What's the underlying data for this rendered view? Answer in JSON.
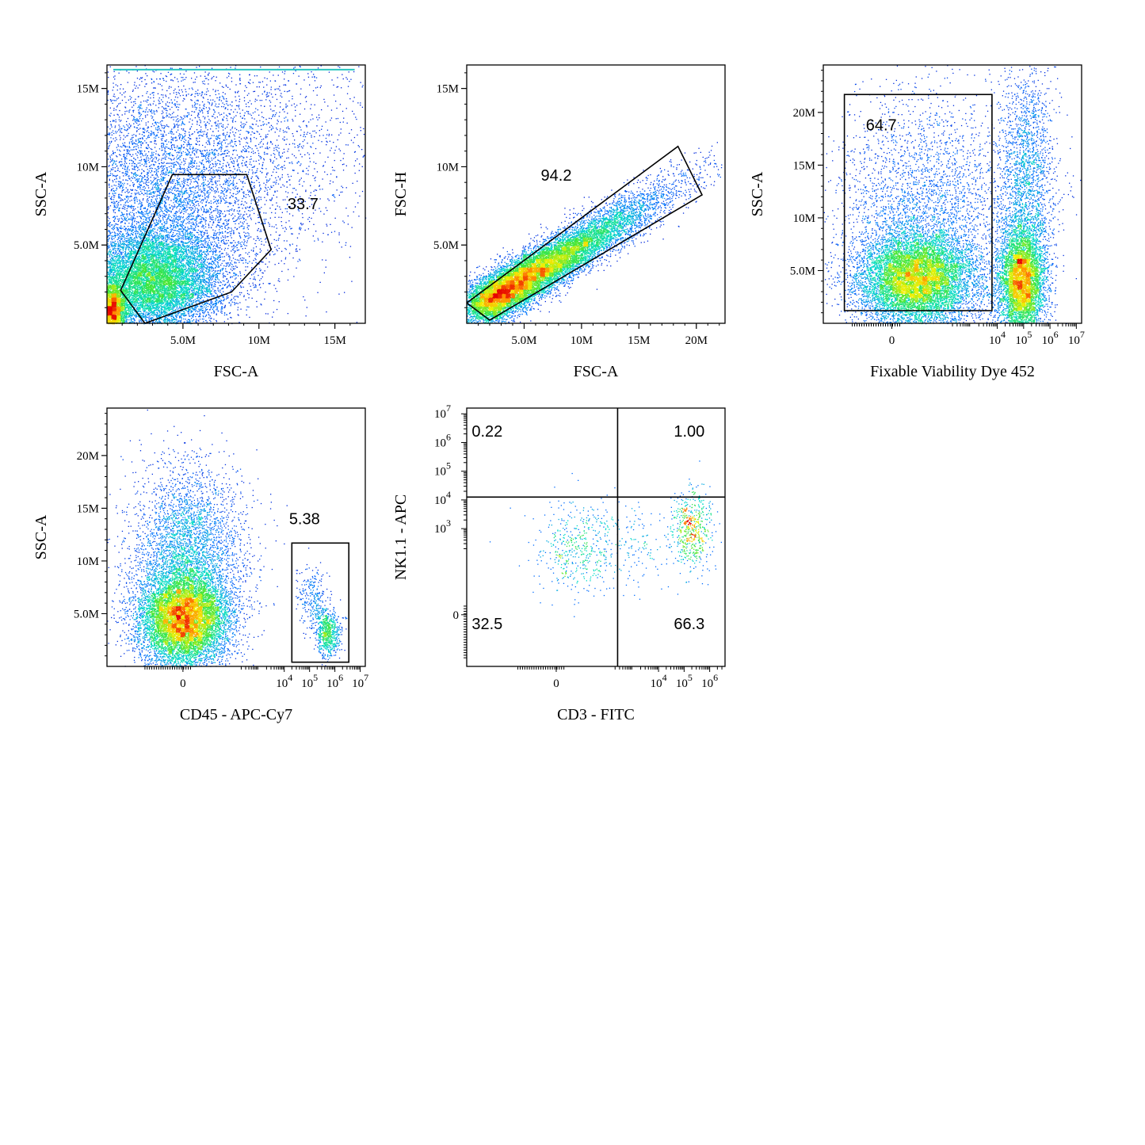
{
  "chart_data": [
    {
      "id": "p1",
      "type": "scatter",
      "xlabel": "FSC-A",
      "ylabel": "SSC-A",
      "xscale": "linear",
      "yscale": "linear",
      "xlim": [
        0,
        17000000
      ],
      "ylim": [
        0,
        16500000
      ],
      "xticks": [
        {
          "v": 5000000,
          "label": "5.0M"
        },
        {
          "v": 10000000,
          "label": "10M"
        },
        {
          "v": 15000000,
          "label": "15M"
        }
      ],
      "yticks": [
        {
          "v": 5000000,
          "label": "5.0M"
        },
        {
          "v": 10000000,
          "label": "10M"
        },
        {
          "v": 15000000,
          "label": "15M"
        }
      ],
      "gate": {
        "shape": "polygon",
        "points": [
          [
            4300000,
            9500000
          ],
          [
            9200000,
            9500000
          ],
          [
            10800000,
            4700000
          ],
          [
            8200000,
            2000000
          ],
          [
            2500000,
            0
          ],
          [
            900000,
            2100000
          ]
        ],
        "label": "33.7",
        "label_at": [
          12900000,
          7300000
        ]
      },
      "clusters": [
        {
          "cx": 3000000,
          "cy": 2700000,
          "sx": 2200000,
          "sy": 1600000,
          "n": 9000
        },
        {
          "cx": 300000,
          "cy": 800000,
          "sx": 500000,
          "sy": 900000,
          "n": 3000
        },
        {
          "cx": 3500000,
          "cy": 7000000,
          "sx": 3500000,
          "sy": 4200000,
          "n": 6000
        },
        {
          "cx": 8000000,
          "cy": 11000000,
          "sx": 5000000,
          "sy": 4000000,
          "n": 2500
        }
      ],
      "ceiling": 16200000
    },
    {
      "id": "p2",
      "type": "scatter",
      "xlabel": "FSC-A",
      "ylabel": "FSC-H",
      "xscale": "linear",
      "yscale": "linear",
      "xlim": [
        0,
        22500000
      ],
      "ylim": [
        0,
        16500000
      ],
      "xticks": [
        {
          "v": 5000000,
          "label": "5.0M"
        },
        {
          "v": 10000000,
          "label": "10M"
        },
        {
          "v": 15000000,
          "label": "15M"
        },
        {
          "v": 20000000,
          "label": "20M"
        }
      ],
      "yticks": [
        {
          "v": 5000000,
          "label": "5.0M"
        },
        {
          "v": 10000000,
          "label": "10M"
        },
        {
          "v": 15000000,
          "label": "15M"
        }
      ],
      "gate": {
        "shape": "polygon",
        "points": [
          [
            0,
            1300000
          ],
          [
            18400000,
            11300000
          ],
          [
            20500000,
            8200000
          ],
          [
            2000000,
            200000
          ]
        ],
        "label": "94.2",
        "label_at": [
          7800000,
          9100000
        ]
      },
      "diagonal": {
        "x0": 1000000,
        "y0": 1000000,
        "x1": 22000000,
        "y1": 10500000,
        "spread": 700000,
        "n": 14000
      }
    },
    {
      "id": "p3",
      "type": "scatter",
      "xlabel": "Fixable Viability Dye 452",
      "ylabel": "SSC-A",
      "xscale": "biex",
      "yscale": "linear",
      "xlim": [
        -2.6,
        7.2
      ],
      "ylim": [
        0,
        24500000
      ],
      "xticks": [
        {
          "v": 0,
          "label": "0"
        },
        {
          "v": 4,
          "label": "10",
          "exp": "4"
        },
        {
          "v": 5,
          "label": "10",
          "exp": "5"
        },
        {
          "v": 6,
          "label": "10",
          "exp": "6"
        },
        {
          "v": 7,
          "label": "10",
          "exp": "7"
        }
      ],
      "yticks": [
        {
          "v": 5000000,
          "label": "5.0M"
        },
        {
          "v": 10000000,
          "label": "10M"
        },
        {
          "v": 15000000,
          "label": "15M"
        },
        {
          "v": 20000000,
          "label": "20M"
        }
      ],
      "gate": {
        "shape": "rect",
        "x0": -1.8,
        "x1": 3.8,
        "y0": 1200000,
        "y1": 21700000,
        "label": "64.7",
        "label_at": [
          -0.4,
          18300000
        ]
      },
      "clusters": [
        {
          "cx": 0.9,
          "cy": 4200000,
          "sx": 1.1,
          "sy": 2300000,
          "n": 9000
        },
        {
          "cx": 4.9,
          "cy": 4000000,
          "sx": 0.45,
          "sy": 2600000,
          "n": 5500
        },
        {
          "cx": 1.3,
          "cy": 11000000,
          "sx": 1.7,
          "sy": 5500000,
          "n": 3000
        },
        {
          "cx": 5.1,
          "cy": 14000000,
          "sx": 0.55,
          "sy": 5000000,
          "n": 2000
        }
      ]
    },
    {
      "id": "p4",
      "type": "scatter",
      "xlabel": "CD45 - APC-Cy7",
      "ylabel": "SSC-A",
      "xscale": "biex",
      "yscale": "linear",
      "xlim": [
        -3.0,
        7.2
      ],
      "ylim": [
        0,
        24500000
      ],
      "xticks": [
        {
          "v": 0,
          "label": "0"
        },
        {
          "v": 4,
          "label": "10",
          "exp": "4"
        },
        {
          "v": 5,
          "label": "10",
          "exp": "5"
        },
        {
          "v": 6,
          "label": "10",
          "exp": "6"
        },
        {
          "v": 7,
          "label": "10",
          "exp": "7"
        }
      ],
      "yticks": [
        {
          "v": 5000000,
          "label": "5.0M"
        },
        {
          "v": 10000000,
          "label": "10M"
        },
        {
          "v": 15000000,
          "label": "15M"
        },
        {
          "v": 20000000,
          "label": "20M"
        }
      ],
      "gate": {
        "shape": "rect",
        "x0": 4.3,
        "x1": 6.55,
        "y0": 400000,
        "y1": 11700000,
        "label": "5.38",
        "label_at": [
          4.8,
          13500000
        ]
      },
      "clusters": [
        {
          "cx": 0.0,
          "cy": 4500000,
          "sx": 0.9,
          "sy": 2300000,
          "n": 9000
        },
        {
          "cx": 0.2,
          "cy": 11000000,
          "sx": 1.1,
          "sy": 4000000,
          "n": 3500
        },
        {
          "cx": 5.7,
          "cy": 3200000,
          "sx": 0.25,
          "sy": 1200000,
          "n": 700
        },
        {
          "cx": 5.1,
          "cy": 6500000,
          "sx": 0.3,
          "sy": 1500000,
          "n": 250
        }
      ]
    },
    {
      "id": "p5",
      "type": "scatter",
      "xlabel": "CD3 - FITC",
      "ylabel": "NK1.1 - APC",
      "xscale": "biex",
      "yscale": "biex",
      "xlim": [
        -3.5,
        6.6
      ],
      "ylim": [
        -1.8,
        7.2
      ],
      "xticks": [
        {
          "v": 0,
          "label": "0"
        },
        {
          "v": 4,
          "label": "10",
          "exp": "4"
        },
        {
          "v": 5,
          "label": "10",
          "exp": "5"
        },
        {
          "v": 6,
          "label": "10",
          "exp": "6"
        }
      ],
      "yticks": [
        {
          "v": 0,
          "label": "0"
        },
        {
          "v": 3,
          "label": "10",
          "exp": "3"
        },
        {
          "v": 4,
          "label": "10",
          "exp": "4"
        },
        {
          "v": 5,
          "label": "10",
          "exp": "5"
        },
        {
          "v": 6,
          "label": "10",
          "exp": "6"
        },
        {
          "v": 7,
          "label": "10",
          "exp": "7"
        }
      ],
      "quadrant": {
        "x": 2.4,
        "y": 4.1,
        "labels": [
          {
            "text": "0.22",
            "at": [
              -2.7,
              6.2
            ]
          },
          {
            "text": "1.00",
            "at": [
              5.2,
              6.2
            ]
          },
          {
            "text": "32.5",
            "at": [
              -2.7,
              -0.5
            ]
          },
          {
            "text": "66.3",
            "at": [
              5.2,
              -0.5
            ]
          }
        ]
      },
      "clusters": [
        {
          "cx": 0.8,
          "cy": 2.3,
          "sx": 0.8,
          "sy": 0.8,
          "n": 450
        },
        {
          "cx": 5.3,
          "cy": 3.0,
          "sx": 0.4,
          "sy": 0.7,
          "n": 550
        },
        {
          "cx": 3.0,
          "cy": 2.4,
          "sx": 0.8,
          "sy": 0.8,
          "n": 150
        }
      ]
    }
  ]
}
